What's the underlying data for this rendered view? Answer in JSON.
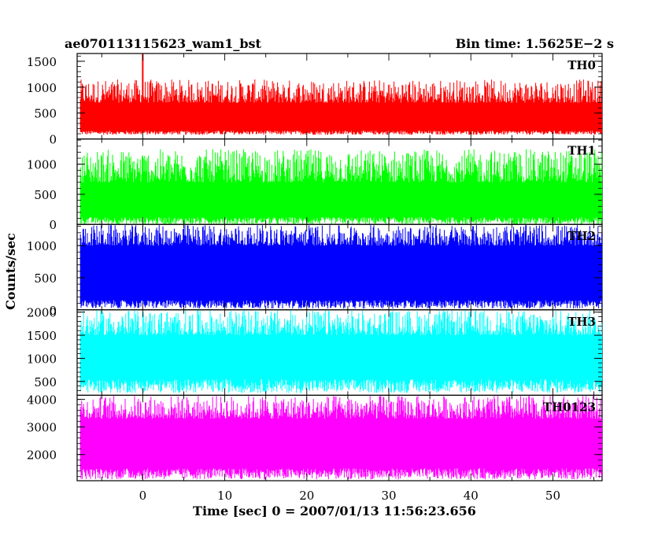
{
  "header": {
    "left_title": "ae070113115623_wam1_bst",
    "right_title": "Bin time: 1.5625E−2 s"
  },
  "chart_data": {
    "type": "line",
    "title": "ae070113115623_wam1_bst",
    "subtitle": "Bin time: 1.5625E−2 s",
    "xlabel": "Time [sec] 0 = 2007/01/13 11:56:23.656",
    "ylabel": "Counts/sec",
    "xlim": [
      -8,
      56
    ],
    "x_ticks": [
      0,
      10,
      20,
      30,
      40,
      50
    ],
    "grid": false,
    "panels": [
      {
        "name": "TH0",
        "color": "#ff0000",
        "ylim": [
          0,
          1650
        ],
        "y_ticks": [
          0,
          500,
          1000,
          1500
        ],
        "baseline": [
          80,
          160
        ],
        "peak": [
          700,
          1150
        ],
        "spike": {
          "x": 0,
          "y": 1650
        }
      },
      {
        "name": "TH1",
        "color": "#00ff00",
        "ylim": [
          0,
          1420
        ],
        "y_ticks": [
          0,
          500,
          1000
        ],
        "baseline": [
          0,
          120
        ],
        "peak": [
          700,
          1250
        ]
      },
      {
        "name": "TH2",
        "color": "#0000ff",
        "ylim": [
          0,
          1330
        ],
        "y_ticks": [
          0,
          500,
          1000
        ],
        "baseline": [
          20,
          150
        ],
        "peak": [
          1000,
          1330
        ]
      },
      {
        "name": "TH3",
        "color": "#00ffff",
        "ylim": [
          200,
          2050
        ],
        "y_ticks": [
          500,
          1000,
          1500,
          2000
        ],
        "baseline": [
          250,
          550
        ],
        "peak": [
          1500,
          2050
        ]
      },
      {
        "name": "TH0123",
        "color": "#ff00ff",
        "ylim": [
          1050,
          4150
        ],
        "y_ticks": [
          2000,
          3000,
          4000
        ],
        "baseline": [
          1100,
          1500
        ],
        "peak": [
          3300,
          4150
        ]
      }
    ]
  }
}
